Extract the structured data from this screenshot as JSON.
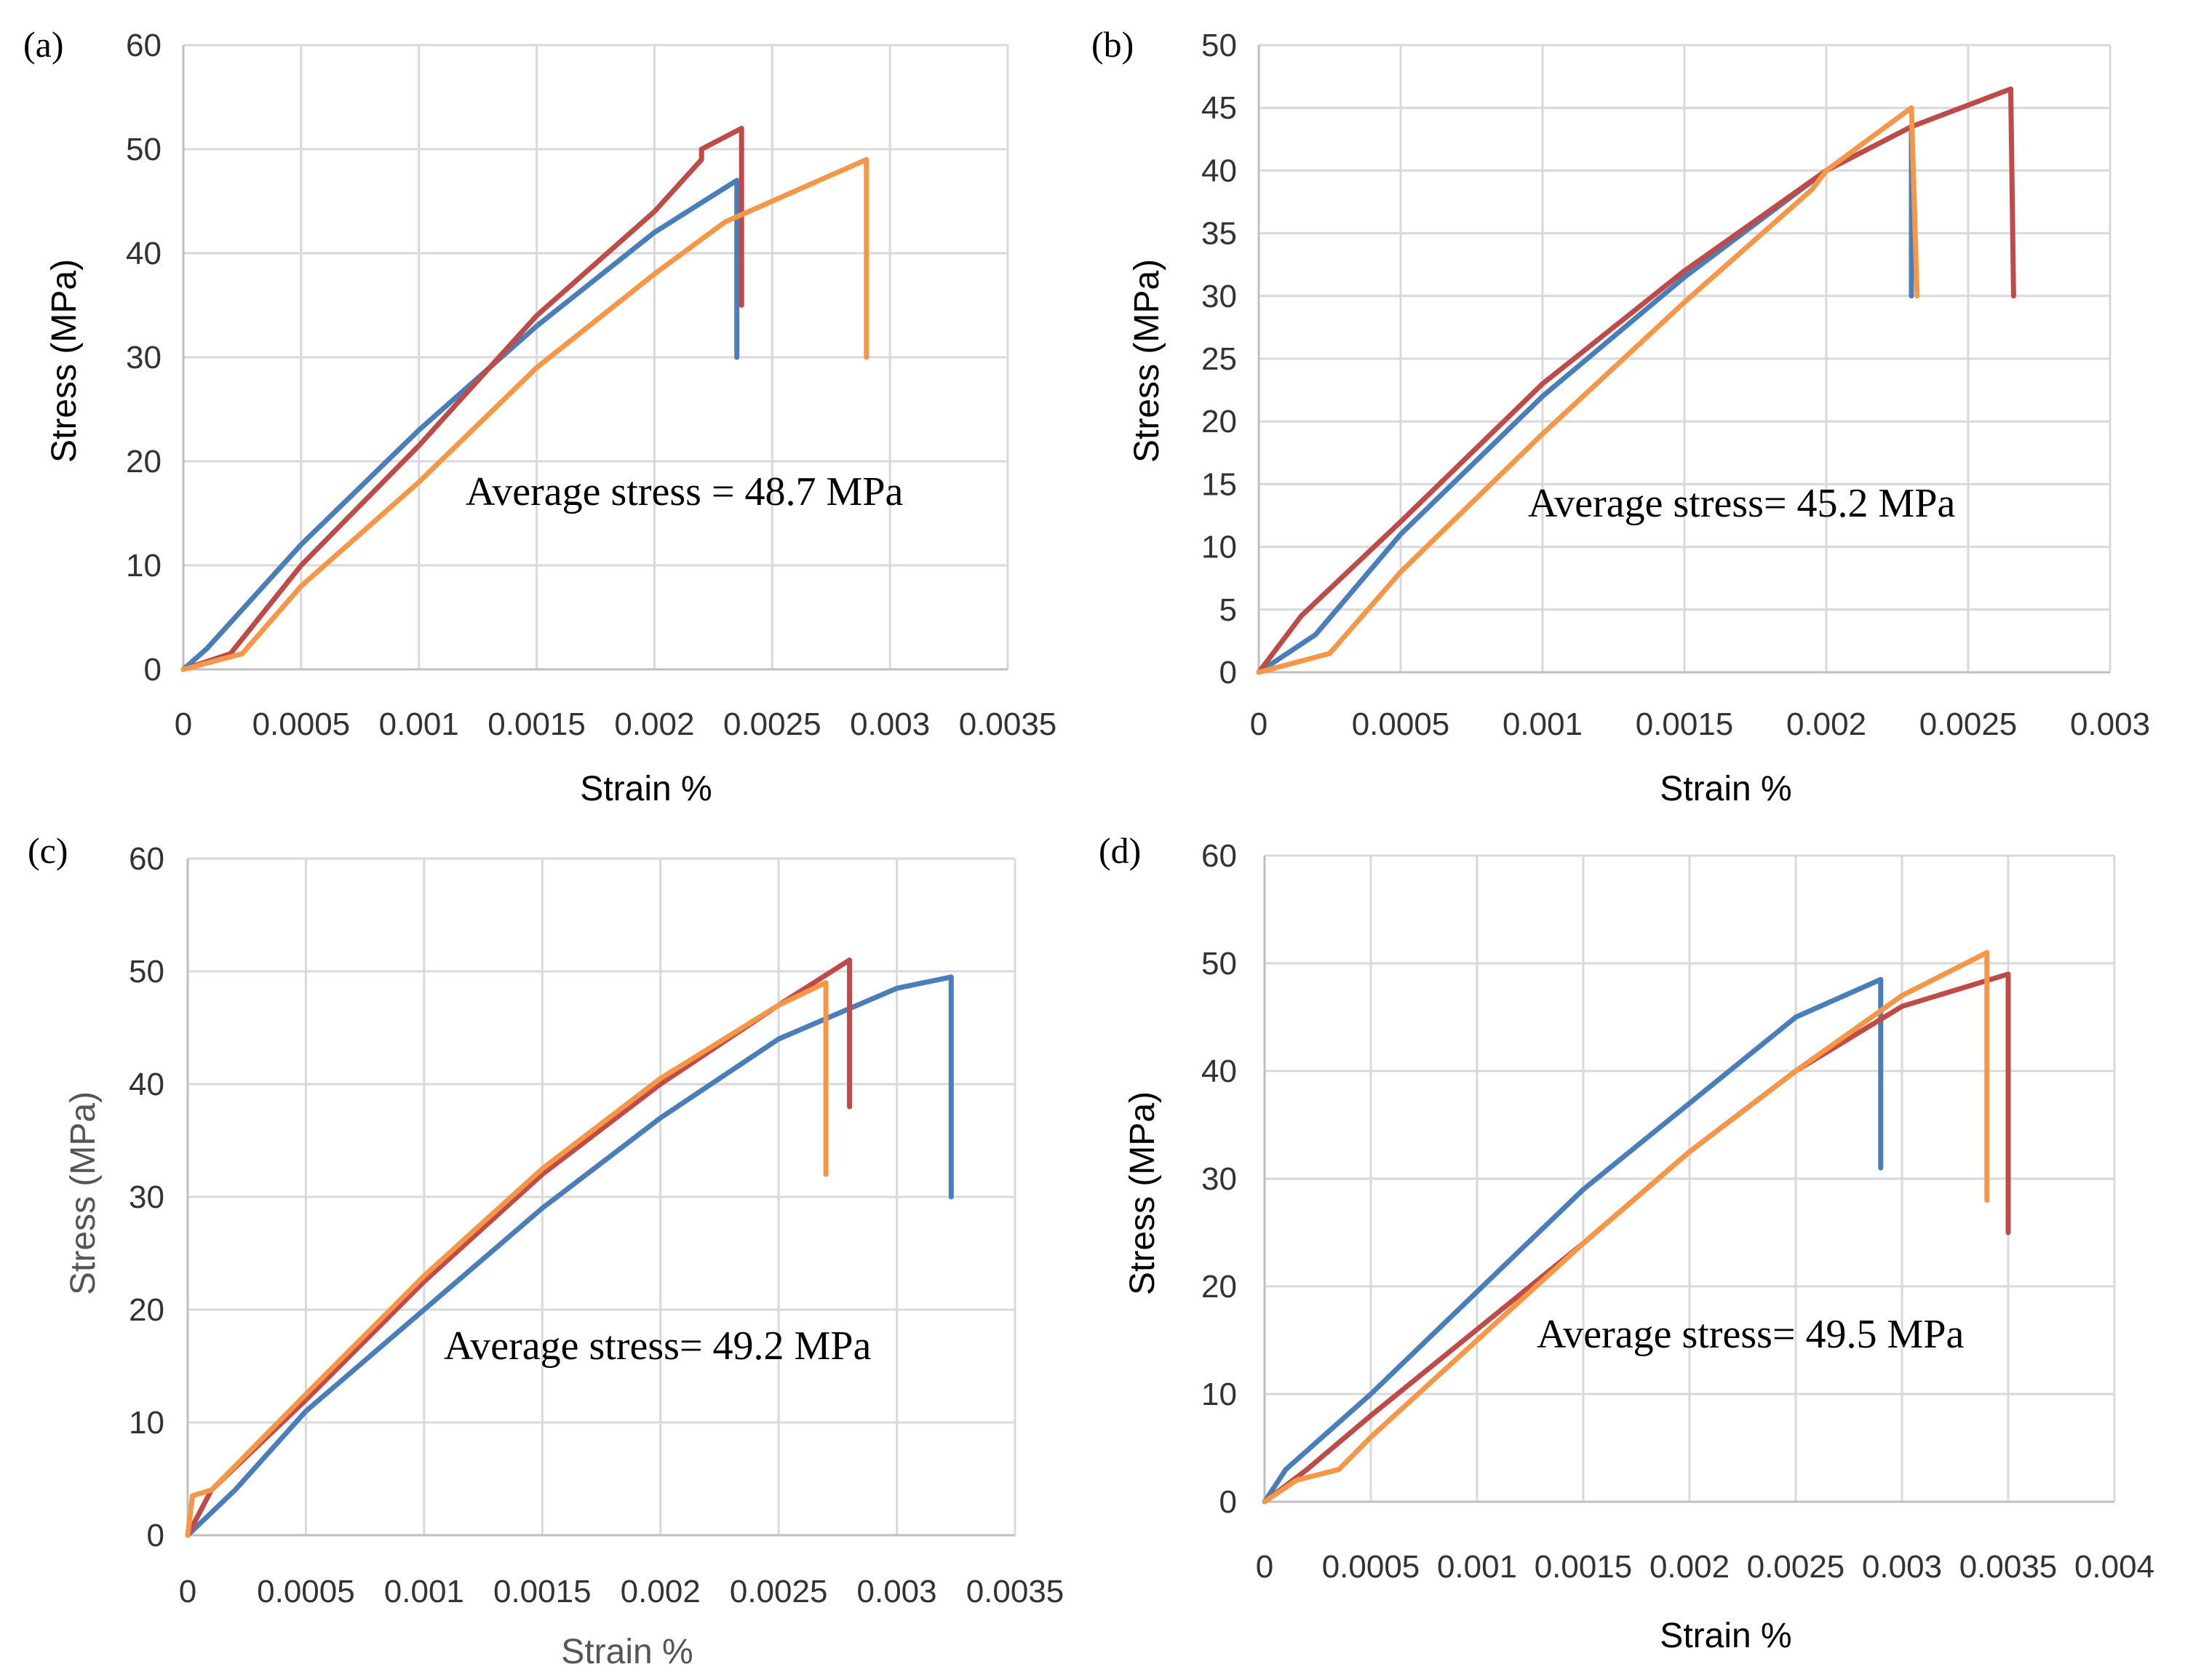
{
  "colors": {
    "blue": "#4a7ebb",
    "red": "#be4b48",
    "orange": "#f79646"
  },
  "chart_data": [
    {
      "type": "line",
      "panel_label": "(a)",
      "xlabel": "Strain %",
      "ylabel": "Stress (MPa)",
      "xlim": [
        0,
        0.0035
      ],
      "ylim": [
        0,
        60
      ],
      "x_ticks": [
        0,
        0.0005,
        0.001,
        0.0015,
        0.002,
        0.0025,
        0.003,
        0.0035
      ],
      "x_tick_labels": [
        "0",
        "0.0005",
        "0.001",
        "0.0015",
        "0.002",
        "0.0025",
        "0.003",
        "0.0035"
      ],
      "y_ticks": [
        0,
        10,
        20,
        30,
        40,
        50,
        60
      ],
      "y_tick_labels": [
        "0",
        "10",
        "20",
        "30",
        "40",
        "50",
        "60"
      ],
      "annotation": "Average stress = 48.7 MPa",
      "grid": true,
      "series": [
        {
          "color": "blue",
          "points": [
            [
              0,
              0
            ],
            [
              0.0001,
              2
            ],
            [
              0.0005,
              12
            ],
            [
              0.001,
              23
            ],
            [
              0.0015,
              33
            ],
            [
              0.002,
              42
            ],
            [
              0.00235,
              47
            ],
            [
              0.00235,
              30
            ]
          ]
        },
        {
          "color": "red",
          "points": [
            [
              0,
              0
            ],
            [
              0.0002,
              1.5
            ],
            [
              0.0005,
              10
            ],
            [
              0.001,
              21.5
            ],
            [
              0.0015,
              34
            ],
            [
              0.002,
              44
            ],
            [
              0.0022,
              49
            ],
            [
              0.0022,
              50
            ],
            [
              0.00237,
              52
            ],
            [
              0.00237,
              35
            ]
          ]
        },
        {
          "color": "orange",
          "points": [
            [
              0,
              0
            ],
            [
              0.00025,
              1.5
            ],
            [
              0.0005,
              8
            ],
            [
              0.001,
              18
            ],
            [
              0.0015,
              29
            ],
            [
              0.002,
              38
            ],
            [
              0.0023,
              43
            ],
            [
              0.0026,
              46
            ],
            [
              0.0029,
              49
            ],
            [
              0.0029,
              30
            ]
          ]
        }
      ]
    },
    {
      "type": "line",
      "panel_label": "(b)",
      "xlabel": "Strain %",
      "ylabel": "Stress (MPa)",
      "xlim": [
        0,
        0.003
      ],
      "ylim": [
        0,
        50
      ],
      "x_ticks": [
        0,
        0.0005,
        0.001,
        0.0015,
        0.002,
        0.0025,
        0.003
      ],
      "x_tick_labels": [
        "0",
        "0.0005",
        "0.001",
        "0.0015",
        "0.002",
        "0.0025",
        "0.003"
      ],
      "y_ticks": [
        0,
        5,
        10,
        15,
        20,
        25,
        30,
        35,
        40,
        45,
        50
      ],
      "y_tick_labels": [
        "0",
        "5",
        "10",
        "15",
        "20",
        "25",
        "30",
        "35",
        "40",
        "45",
        "50"
      ],
      "annotation": "Average stress= 45.2 MPa",
      "grid": true,
      "series": [
        {
          "color": "blue",
          "points": [
            [
              0,
              0
            ],
            [
              0.0002,
              3
            ],
            [
              0.0005,
              11
            ],
            [
              0.001,
              22
            ],
            [
              0.0015,
              31.5
            ],
            [
              0.002,
              40
            ],
            [
              0.0023,
              43.5
            ],
            [
              0.0023,
              30
            ]
          ]
        },
        {
          "color": "red",
          "points": [
            [
              0,
              0
            ],
            [
              0.00015,
              4.5
            ],
            [
              0.0005,
              12
            ],
            [
              0.001,
              23
            ],
            [
              0.0015,
              32
            ],
            [
              0.002,
              40
            ],
            [
              0.0023,
              43.5
            ],
            [
              0.00265,
              46.5
            ],
            [
              0.00266,
              30
            ]
          ]
        },
        {
          "color": "orange",
          "points": [
            [
              0,
              0
            ],
            [
              0.00025,
              1.5
            ],
            [
              0.0005,
              8
            ],
            [
              0.001,
              19
            ],
            [
              0.0015,
              29.5
            ],
            [
              0.00195,
              38.5
            ],
            [
              0.002,
              40
            ],
            [
              0.0023,
              45
            ],
            [
              0.00232,
              30
            ]
          ]
        }
      ]
    },
    {
      "type": "line",
      "panel_label": "(c)",
      "xlabel": "Strain %",
      "ylabel": "Stress (MPa)",
      "xlim": [
        0,
        0.0035
      ],
      "ylim": [
        0,
        60
      ],
      "x_ticks": [
        0,
        0.0005,
        0.001,
        0.0015,
        0.002,
        0.0025,
        0.003,
        0.0035
      ],
      "x_tick_labels": [
        "0",
        "0.0005",
        "0.001",
        "0.0015",
        "0.002",
        "0.0025",
        "0.003",
        "0.0035"
      ],
      "y_ticks": [
        0,
        10,
        20,
        30,
        40,
        50,
        60
      ],
      "y_tick_labels": [
        "0",
        "10",
        "20",
        "30",
        "40",
        "50",
        "60"
      ],
      "annotation": "Average stress= 49.2 MPa",
      "grid": true,
      "series": [
        {
          "color": "blue",
          "points": [
            [
              0,
              0
            ],
            [
              0.0002,
              4
            ],
            [
              0.0005,
              11
            ],
            [
              0.001,
              20
            ],
            [
              0.0015,
              29
            ],
            [
              0.002,
              37
            ],
            [
              0.0025,
              44
            ],
            [
              0.003,
              48.5
            ],
            [
              0.00323,
              49.5
            ],
            [
              0.00323,
              30
            ]
          ]
        },
        {
          "color": "red",
          "points": [
            [
              0,
              0
            ],
            [
              0.0001,
              4
            ],
            [
              0.0005,
              12
            ],
            [
              0.001,
              22.5
            ],
            [
              0.0015,
              32
            ],
            [
              0.002,
              40
            ],
            [
              0.0025,
              47
            ],
            [
              0.0028,
              51
            ],
            [
              0.0028,
              38
            ]
          ]
        },
        {
          "color": "orange",
          "points": [
            [
              0,
              0
            ],
            [
              2e-05,
              3.5
            ],
            [
              0.0001,
              4
            ],
            [
              0.0005,
              12.5
            ],
            [
              0.001,
              23
            ],
            [
              0.0015,
              32.5
            ],
            [
              0.002,
              40.5
            ],
            [
              0.0025,
              47
            ],
            [
              0.0027,
              49
            ],
            [
              0.0027,
              32
            ]
          ]
        }
      ]
    },
    {
      "type": "line",
      "panel_label": "(d)",
      "xlabel": "Strain %",
      "ylabel": "Stress (MPa)",
      "xlim": [
        0,
        0.004
      ],
      "ylim": [
        0,
        60
      ],
      "x_ticks": [
        0,
        0.0005,
        0.001,
        0.0015,
        0.002,
        0.0025,
        0.003,
        0.0035,
        0.004
      ],
      "x_tick_labels": [
        "0",
        "0.0005",
        "0.001",
        "0.0015",
        "0.002",
        "0.0025",
        "0.003",
        "0.0035",
        "0.004"
      ],
      "y_ticks": [
        0,
        10,
        20,
        30,
        40,
        50,
        60
      ],
      "y_tick_labels": [
        "0",
        "10",
        "20",
        "30",
        "40",
        "50",
        "60"
      ],
      "annotation": "Average stress= 49.5 MPa",
      "grid": true,
      "series": [
        {
          "color": "blue",
          "points": [
            [
              0,
              0
            ],
            [
              0.0001,
              3
            ],
            [
              0.0005,
              10
            ],
            [
              0.001,
              19.5
            ],
            [
              0.0015,
              29
            ],
            [
              0.002,
              37
            ],
            [
              0.0025,
              45
            ],
            [
              0.0029,
              48.5
            ],
            [
              0.0029,
              31
            ]
          ]
        },
        {
          "color": "red",
          "points": [
            [
              0,
              0
            ],
            [
              0.0002,
              3
            ],
            [
              0.0005,
              8
            ],
            [
              0.001,
              16
            ],
            [
              0.0015,
              24
            ],
            [
              0.002,
              32.5
            ],
            [
              0.0025,
              40
            ],
            [
              0.003,
              46
            ],
            [
              0.0035,
              49
            ],
            [
              0.0035,
              25
            ]
          ]
        },
        {
          "color": "orange",
          "points": [
            [
              0,
              0
            ],
            [
              0.00015,
              2
            ],
            [
              0.00035,
              3
            ],
            [
              0.0005,
              6
            ],
            [
              0.001,
              15
            ],
            [
              0.0015,
              24
            ],
            [
              0.002,
              32.5
            ],
            [
              0.0025,
              40
            ],
            [
              0.003,
              47
            ],
            [
              0.0034,
              51
            ],
            [
              0.0034,
              28
            ]
          ]
        }
      ]
    }
  ]
}
